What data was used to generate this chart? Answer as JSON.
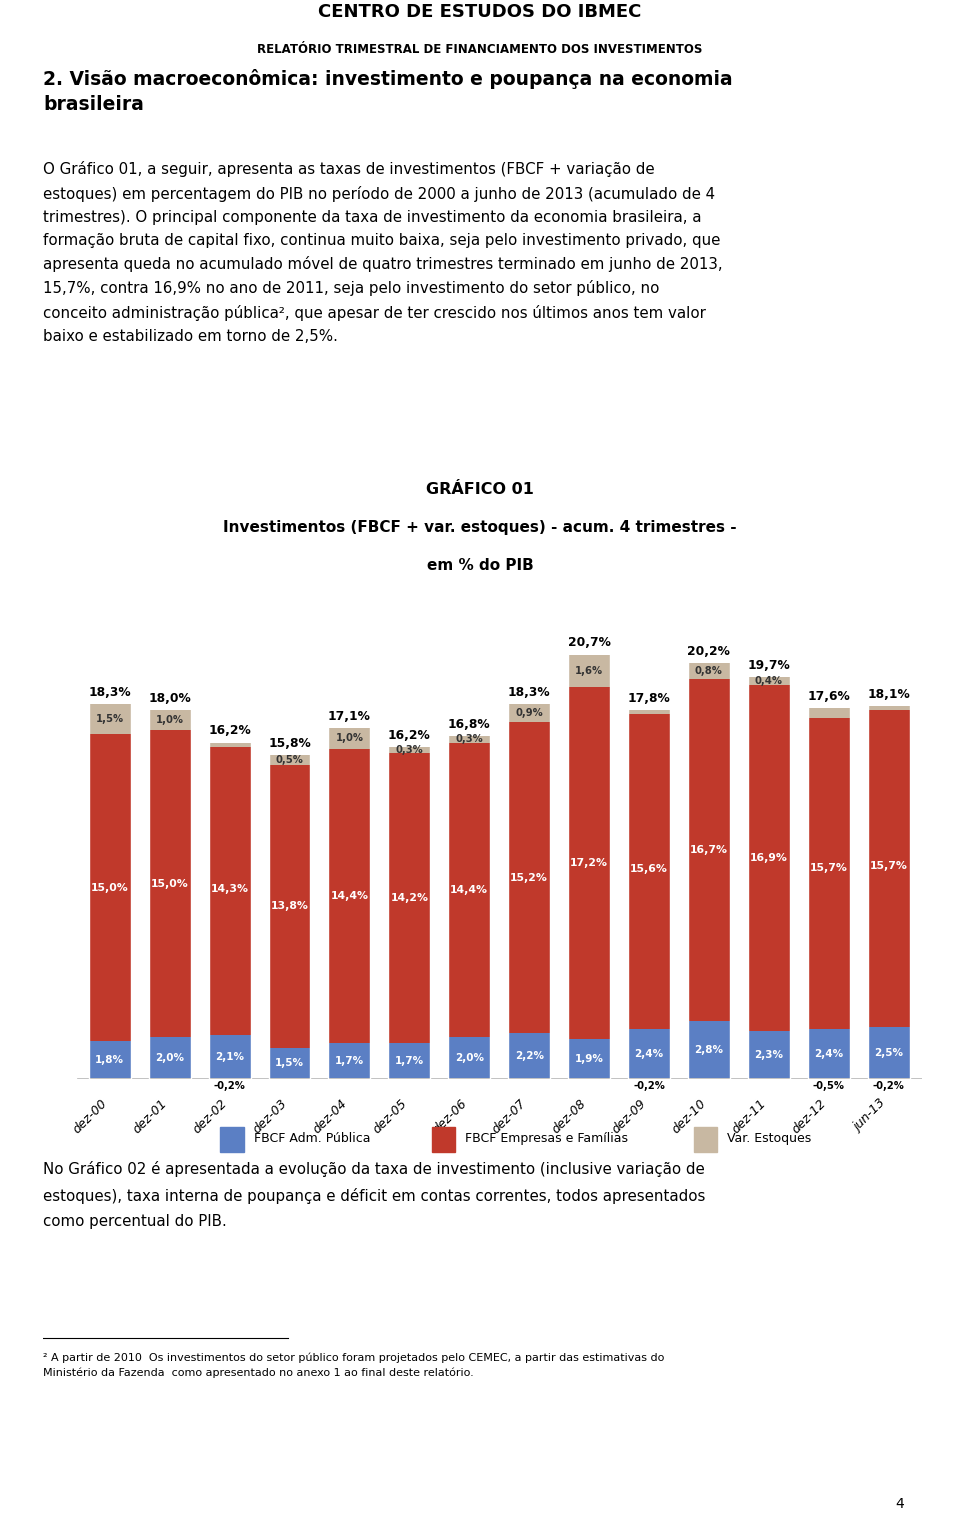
{
  "title_main": "CENTRO DE ESTUDOS DO IBMEC",
  "title_sub": "RELATÓRIO TRIMESTRAL DE FINANCIAMENTO DOS INVESTIMENTOS",
  "chart_title1": "GRÁFICO 01",
  "chart_title2": "Investimentos (FBCF + var. estoques) - acum. 4 trimestres -",
  "chart_title3": "em % do PIB",
  "categories": [
    "dez-00",
    "dez-01",
    "dez-02",
    "dez-03",
    "dez-04",
    "dez-05",
    "dez-06",
    "dez-07",
    "dez-08",
    "dez-09",
    "dez-10",
    "dez-11",
    "dez-12",
    "jun-13"
  ],
  "fbcf_publica": [
    1.8,
    2.0,
    2.1,
    1.5,
    1.7,
    1.7,
    2.0,
    2.2,
    1.9,
    2.4,
    2.8,
    2.3,
    2.4,
    2.5
  ],
  "fbcf_empresas": [
    15.0,
    15.0,
    14.3,
    13.8,
    14.4,
    14.2,
    14.4,
    15.2,
    17.2,
    15.6,
    16.7,
    16.9,
    15.7,
    15.7
  ],
  "var_estoques": [
    1.5,
    1.0,
    -0.2,
    0.5,
    1.0,
    0.3,
    0.3,
    0.9,
    1.6,
    -0.2,
    0.8,
    0.4,
    -0.5,
    -0.2
  ],
  "total_labels": [
    "18,3%",
    "18,0%",
    "16,2%",
    "15,8%",
    "17,1%",
    "16,2%",
    "16,8%",
    "18,3%",
    "20,7%",
    "17,8%",
    "20,2%",
    "19,7%",
    "17,6%",
    "18,1%"
  ],
  "publica_labels": [
    "1,8%",
    "2,0%",
    "2,1%",
    "1,5%",
    "1,7%",
    "1,7%",
    "2,0%",
    "2,2%",
    "1,9%",
    "2,4%",
    "2,8%",
    "2,3%",
    "2,4%",
    "2,5%"
  ],
  "empresas_labels": [
    "15,0%",
    "15,0%",
    "14,3%",
    "13,8%",
    "14,4%",
    "14,2%",
    "14,4%",
    "15,2%",
    "17,2%",
    "15,6%",
    "16,7%",
    "16,9%",
    "15,7%",
    "15,7%"
  ],
  "estoques_labels": [
    "1,5%",
    "1,0%",
    "-0,2%",
    "0,5%",
    "1,0%",
    "0,3%",
    "0,3%",
    "0,9%",
    "1,6%",
    "-0,2%",
    "0,8%",
    "0,4%",
    "-0,5%",
    "-0,2%"
  ],
  "color_publica": "#5b7fc4",
  "color_empresas": "#c0392b",
  "color_estoques": "#c8b8a2",
  "legend_publica": "FBCF Adm. Pública",
  "legend_empresas": "FBCF Empresas e Famílias",
  "legend_estoques": "Var. Estoques",
  "page_number": "4",
  "background_color": "#ffffff"
}
